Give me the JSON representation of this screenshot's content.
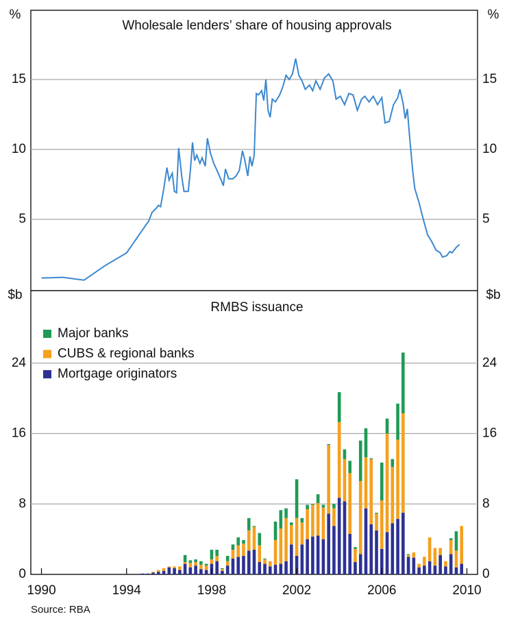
{
  "source": "Source: RBA",
  "chart_data": [
    {
      "type": "line",
      "title": "Wholesale lenders’ share of housing approvals",
      "y_label": "%",
      "color": "#3a87cf",
      "xlim": [
        1989.5,
        2010.5
      ],
      "ylim": [
        0,
        20
      ],
      "yticks": [
        5,
        10,
        15
      ],
      "grid": true,
      "x": [
        1990.0,
        1991.0,
        1992.0,
        1993.0,
        1994.0,
        1995.05,
        1995.2,
        1995.4,
        1995.5,
        1995.6,
        1995.75,
        1995.9,
        1996.0,
        1996.15,
        1996.25,
        1996.35,
        1996.45,
        1996.6,
        1996.7,
        1996.9,
        1997.0,
        1997.1,
        1997.2,
        1997.3,
        1997.45,
        1997.55,
        1997.7,
        1997.8,
        1997.95,
        1998.1,
        1998.25,
        1998.45,
        1998.55,
        1998.65,
        1998.8,
        1999.0,
        1999.15,
        1999.3,
        1999.45,
        1999.55,
        1999.7,
        1999.8,
        1999.9,
        2000.0,
        2000.1,
        2000.2,
        2000.35,
        2000.45,
        2000.55,
        2000.65,
        2000.75,
        2000.85,
        2001.0,
        2001.2,
        2001.35,
        2001.5,
        2001.65,
        2001.8,
        2001.95,
        2002.1,
        2002.25,
        2002.4,
        2002.6,
        2002.75,
        2002.9,
        2003.1,
        2003.3,
        2003.5,
        2003.7,
        2003.85,
        2004.05,
        2004.25,
        2004.45,
        2004.65,
        2004.85,
        2005.05,
        2005.2,
        2005.4,
        2005.6,
        2005.8,
        2006.0,
        2006.15,
        2006.35,
        2006.55,
        2006.75,
        2006.85,
        2007.0,
        2007.1,
        2007.2,
        2007.3,
        2007.45,
        2007.55,
        2007.75,
        2007.95,
        2008.15,
        2008.35,
        2008.55,
        2008.75,
        2008.85,
        2009.05,
        2009.2,
        2009.3,
        2009.5,
        2009.65
      ],
      "values": [
        0.8,
        0.85,
        0.65,
        1.7,
        2.6,
        4.9,
        5.5,
        5.8,
        6.0,
        5.9,
        7.2,
        8.7,
        7.8,
        8.3,
        7.0,
        6.9,
        10.1,
        8.0,
        7.0,
        7.0,
        8.5,
        10.5,
        9.2,
        9.6,
        9.0,
        9.4,
        8.8,
        10.8,
        9.7,
        9.0,
        8.5,
        7.8,
        7.4,
        8.6,
        7.9,
        7.9,
        8.1,
        8.5,
        9.9,
        9.3,
        8.1,
        9.5,
        8.8,
        9.6,
        14.0,
        13.9,
        14.2,
        13.5,
        15.0,
        12.8,
        12.3,
        13.6,
        13.4,
        13.9,
        14.5,
        15.3,
        15.0,
        15.4,
        16.5,
        15.3,
        14.9,
        14.3,
        14.6,
        14.2,
        14.9,
        14.3,
        15.1,
        15.4,
        14.9,
        13.6,
        13.8,
        13.2,
        14.0,
        13.9,
        12.8,
        13.6,
        13.8,
        13.4,
        13.8,
        13.2,
        13.7,
        11.9,
        12.0,
        13.2,
        13.7,
        14.3,
        13.3,
        12.2,
        12.9,
        11.0,
        8.5,
        7.2,
        6.2,
        5.0,
        3.9,
        3.4,
        2.8,
        2.6,
        2.3,
        2.4,
        2.7,
        2.6,
        3.0,
        3.2
      ]
    },
    {
      "type": "stacked_bar",
      "title": "RMBS issuance",
      "y_label": "$b",
      "xlim": [
        1989.5,
        2010.5
      ],
      "xticks": [
        1990,
        1994,
        1998,
        2002,
        2006,
        2010
      ],
      "ylim": [
        0,
        32
      ],
      "yticks": [
        0,
        8,
        16,
        24
      ],
      "grid": true,
      "legend": "upper left",
      "x": [
        1994.75,
        1995.0,
        1995.25,
        1995.5,
        1995.75,
        1996.0,
        1996.25,
        1996.5,
        1996.75,
        1997.0,
        1997.25,
        1997.5,
        1997.75,
        1998.0,
        1998.25,
        1998.5,
        1998.75,
        1999.0,
        1999.25,
        1999.5,
        1999.75,
        2000.0,
        2000.25,
        2000.5,
        2000.75,
        2001.0,
        2001.25,
        2001.5,
        2001.75,
        2002.0,
        2002.25,
        2002.5,
        2002.75,
        2003.0,
        2003.25,
        2003.5,
        2003.75,
        2004.0,
        2004.25,
        2004.5,
        2004.75,
        2005.0,
        2005.25,
        2005.5,
        2005.75,
        2006.0,
        2006.25,
        2006.5,
        2006.75,
        2007.0,
        2007.25,
        2007.5,
        2007.75,
        2008.0,
        2008.25,
        2008.5,
        2008.75,
        2009.0,
        2009.25,
        2009.5,
        2009.75
      ],
      "series": [
        {
          "name": "Major banks",
          "color": "#1f9a55",
          "values": [
            0,
            0,
            0,
            0,
            0,
            0,
            0,
            0,
            0.8,
            0.3,
            0.3,
            0.4,
            0.2,
            1.1,
            0.7,
            0.1,
            0.6,
            0.6,
            0.9,
            0.4,
            1.4,
            0.1,
            1.4,
            0.1,
            0,
            2.1,
            2.1,
            1.1,
            0.3,
            4.4,
            0.5,
            0.5,
            0.1,
            1.0,
            0.3,
            0.1,
            0.5,
            3.4,
            1.1,
            1.4,
            0.2,
            4.6,
            3.3,
            0.1,
            0.1,
            4.3,
            1.7,
            0.9,
            4.1,
            6.9,
            0.1,
            0,
            0,
            0,
            0,
            0,
            0,
            0,
            0.2,
            2.2,
            0
          ]
        },
        {
          "name": "CUBS & regional banks",
          "color": "#f5a01e",
          "values": [
            0,
            0,
            0.1,
            0.2,
            0.3,
            0.1,
            0.2,
            0.4,
            0.2,
            0.5,
            0.4,
            0.5,
            0.5,
            0.5,
            0.6,
            0.2,
            0.5,
            1.0,
            1.3,
            1.4,
            2.3,
            2.6,
            1.9,
            0.5,
            0.6,
            2.8,
            4.0,
            4.9,
            2.2,
            4.3,
            2.5,
            3.4,
            3.6,
            3.7,
            3.6,
            7.8,
            2.0,
            8.6,
            4.8,
            6.9,
            1.5,
            8.3,
            5.8,
            7.4,
            1.9,
            5.5,
            11.2,
            6.4,
            9.0,
            11.3,
            0.2,
            0.6,
            0.4,
            1.0,
            2.7,
            2.0,
            0.8,
            0.6,
            1.6,
            1.9,
            4.3
          ]
        },
        {
          "name": "Mortgage originators",
          "color": "#2e3192",
          "values": [
            0.1,
            0.1,
            0.2,
            0.3,
            0.4,
            0.8,
            0.7,
            0.5,
            1.2,
            0.8,
            1.0,
            0.6,
            0.5,
            1.2,
            1.5,
            0.4,
            1.0,
            1.8,
            2.0,
            2.1,
            2.7,
            2.8,
            1.4,
            1.2,
            0.9,
            1.1,
            1.2,
            1.5,
            3.4,
            2.1,
            3.4,
            4.0,
            4.3,
            4.4,
            4.0,
            6.9,
            5.5,
            8.7,
            8.3,
            4.6,
            1.4,
            2.3,
            7.5,
            5.7,
            5.0,
            2.9,
            4.8,
            5.8,
            6.3,
            7.0,
            2.0,
            1.9,
            0.8,
            1.0,
            1.5,
            1.0,
            2.2,
            0.9,
            2.3,
            0.8,
            1.2
          ]
        }
      ]
    }
  ]
}
